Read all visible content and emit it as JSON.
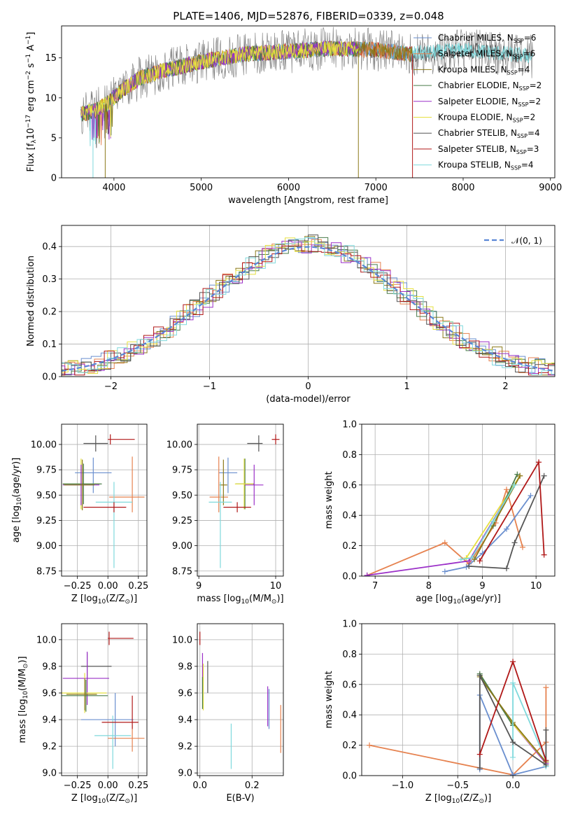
{
  "title": "PLATE=1406, MJD=52876, FIBERID=0339, z=0.048",
  "colors": {
    "Chabrier MILES": "#6a8fcf",
    "Salpeter MILES": "#e6824f",
    "Kroupa MILES": "#8c7a1a",
    "Chabrier ELODIE": "#4a7c4a",
    "Salpeter ELODIE": "#9b30c8",
    "Kroupa ELODIE": "#e6e040",
    "Chabrier STELIB": "#555555",
    "Salpeter STELIB": "#b01818",
    "Kroupa STELIB": "#7fd9dc"
  },
  "chart_data": [
    {
      "type": "line",
      "id": "spectrum",
      "title": "PLATE=1406, MJD=52876, FIBERID=0339, z=0.048",
      "xlabel": "wavelength [Angstrom, rest frame]",
      "ylabel_parts": [
        "Flux [f",
        "λ",
        "10",
        "−17",
        " erg cm",
        "−2",
        " s",
        "−1",
        " A",
        "−1",
        "]"
      ],
      "xlim": [
        3400,
        9050
      ],
      "ylim": [
        0,
        19
      ],
      "xticks": [
        4000,
        5000,
        6000,
        7000,
        8000,
        9000
      ],
      "yticks": [
        0,
        5,
        10,
        15
      ],
      "legend_position": "upper right",
      "legend": [
        {
          "model": "Chabrier MILES",
          "nssp": "6"
        },
        {
          "model": "Salpeter MILES",
          "nssp": "6"
        },
        {
          "model": "Kroupa MILES",
          "nssp": "4"
        },
        {
          "model": "Chabrier ELODIE",
          "nssp": "2"
        },
        {
          "model": "Salpeter ELODIE",
          "nssp": "2"
        },
        {
          "model": "Kroupa ELODIE",
          "nssp": "2"
        },
        {
          "model": "Chabrier STELIB",
          "nssp": "4"
        },
        {
          "model": "Salpeter STELIB",
          "nssp": "3"
        },
        {
          "model": "Kroupa STELIB",
          "nssp": "4"
        }
      ],
      "nssp_label": "N",
      "nssp_sub": "SSP",
      "continuum": {
        "x": [
          3650,
          3800,
          3950,
          4100,
          4300,
          4600,
          5000,
          5500,
          6000,
          6500,
          7000,
          7400,
          7700,
          8000,
          8400,
          8800
        ],
        "y": [
          8,
          8.5,
          9.5,
          11,
          12.5,
          13.5,
          14.5,
          15.5,
          15.8,
          16.2,
          16,
          15.5,
          15.7,
          16,
          15.6,
          15.2
        ]
      },
      "cutoffs": [
        {
          "model": "Kroupa STELIB",
          "x": 3760
        },
        {
          "model": "Kroupa MILES",
          "x": 3900
        },
        {
          "model": "Kroupa MILES",
          "x": 6800
        },
        {
          "model": "Salpeter STELIB",
          "x": 7420
        }
      ]
    },
    {
      "type": "bar",
      "id": "residuals",
      "xlabel": "(data-model)/error",
      "ylabel": "Normed distribution",
      "xlim": [
        -2.5,
        2.5
      ],
      "ylim": [
        0,
        0.465
      ],
      "xticks": [
        -2,
        -1,
        0,
        1,
        2
      ],
      "yticks": [
        0.0,
        0.1,
        0.2,
        0.3,
        0.4
      ],
      "grid": true,
      "legend_position": "upper right",
      "reference_curve": {
        "label": "𝒩(0, 1)",
        "mean": 0,
        "sigma": 1,
        "color": "#5a86d6"
      },
      "bin_width": 0.1
    },
    {
      "type": "scatter",
      "id": "age-vs-Z",
      "xlabel_parts": [
        "Z [log",
        "10",
        "(Z/Z",
        "⊙",
        ")]"
      ],
      "ylabel_parts": [
        "age  [log",
        "10",
        "(age/yr)]"
      ],
      "xlim": [
        -0.38,
        0.32
      ],
      "ylim": [
        8.7,
        10.2
      ],
      "xticks": [
        -0.25,
        0.0,
        0.25
      ],
      "xticklabels": [
        "−0.25",
        "0.00",
        "0.25"
      ],
      "yticks": [
        8.75,
        9.0,
        9.25,
        9.5,
        9.75,
        10.0
      ],
      "grid": true,
      "points": [
        {
          "model": "Salpeter STELIB",
          "x": 0.02,
          "y": 10.05,
          "xerr": [
            0.02,
            0.2
          ],
          "yerr": [
            0.05,
            0.05
          ]
        },
        {
          "model": "Chabrier STELIB",
          "x": -0.1,
          "y": 10.01,
          "xerr": [
            0.1,
            0.1
          ],
          "yerr": [
            0.08,
            0.08
          ]
        },
        {
          "model": "Chabrier MILES",
          "x": -0.12,
          "y": 9.72,
          "xerr": [
            0.15,
            0.15
          ],
          "yerr": [
            0.2,
            0.15
          ]
        },
        {
          "model": "Salpeter MILES",
          "x": 0.2,
          "y": 9.48,
          "xerr": [
            0.19,
            0.1
          ],
          "yerr": [
            0.15,
            0.4
          ]
        },
        {
          "model": "Kroupa ELODIE",
          "x": -0.22,
          "y": 9.61,
          "xerr": [
            0.15,
            0.15
          ],
          "yerr": [
            0.25,
            0.25
          ]
        },
        {
          "model": "Chabrier ELODIE",
          "x": -0.2,
          "y": 9.61,
          "xerr": [
            0.17,
            0.15
          ],
          "yerr": [
            0.2,
            0.2
          ]
        },
        {
          "model": "Salpeter ELODIE",
          "x": -0.22,
          "y": 9.6,
          "xerr": [
            0.15,
            0.15
          ],
          "yerr": [
            0.2,
            0.2
          ]
        },
        {
          "model": "Kroupa MILES",
          "x": -0.21,
          "y": 9.6,
          "xerr": [
            0.15,
            0.1
          ],
          "yerr": [
            0.25,
            0.25
          ]
        },
        {
          "model": "Kroupa STELIB",
          "x": 0.05,
          "y": 9.43,
          "xerr": [
            0.15,
            0.15
          ],
          "yerr": [
            0.65,
            0.2
          ]
        },
        {
          "model": "Salpeter STELIB",
          "x": 0.05,
          "y": 9.38,
          "xerr": [
            0.25,
            0.1
          ],
          "yerr": [
            0.05,
            0.05
          ]
        }
      ]
    },
    {
      "type": "scatter",
      "id": "age-vs-mass",
      "xlabel_parts": [
        "mass [log",
        "10",
        "(M/M",
        "⊙",
        ")]"
      ],
      "xlim": [
        8.98,
        10.1
      ],
      "ylim": [
        8.7,
        10.2
      ],
      "xticks": [
        9,
        10
      ],
      "yticks": [
        8.75,
        9.0,
        9.25,
        9.5,
        9.75,
        10.0
      ],
      "grid": true,
      "points": [
        {
          "model": "Salpeter STELIB",
          "x": 10.0,
          "y": 10.05,
          "xerr": [
            0.05,
            0.05
          ],
          "yerr": [
            0.05,
            0.05
          ]
        },
        {
          "model": "Chabrier STELIB",
          "x": 9.78,
          "y": 10.01,
          "xerr": [
            0.15,
            0.05
          ],
          "yerr": [
            0.08,
            0.08
          ]
        },
        {
          "model": "Chabrier MILES",
          "x": 9.38,
          "y": 9.72,
          "xerr": [
            0.12,
            0.12
          ],
          "yerr": [
            0.2,
            0.15
          ]
        },
        {
          "model": "Salpeter MILES",
          "x": 9.26,
          "y": 9.48,
          "xerr": [
            0.12,
            0.12
          ],
          "yerr": [
            0.15,
            0.4
          ]
        },
        {
          "model": "Chabrier ELODIE",
          "x": 9.6,
          "y": 9.61,
          "xerr": [
            0.12,
            0.12
          ],
          "yerr": [
            0.25,
            0.25
          ]
        },
        {
          "model": "Kroupa ELODIE",
          "x": 9.59,
          "y": 9.61,
          "xerr": [
            0.12,
            0.12
          ],
          "yerr": [
            0.25,
            0.25
          ]
        },
        {
          "model": "Salpeter ELODIE",
          "x": 9.72,
          "y": 9.6,
          "xerr": [
            0.12,
            0.12
          ],
          "yerr": [
            0.2,
            0.2
          ]
        },
        {
          "model": "Kroupa MILES",
          "x": 9.32,
          "y": 9.6,
          "xerr": [
            0.05,
            0.05
          ],
          "yerr": [
            0.2,
            0.25
          ]
        },
        {
          "model": "Kroupa STELIB",
          "x": 9.28,
          "y": 9.43,
          "xerr": [
            0.15,
            0.15
          ],
          "yerr": [
            0.65,
            0.2
          ]
        },
        {
          "model": "Salpeter STELIB",
          "x": 9.5,
          "y": 9.38,
          "xerr": [
            0.18,
            0.18
          ],
          "yerr": [
            0.05,
            0.05
          ]
        }
      ]
    },
    {
      "type": "line",
      "id": "weight-vs-age",
      "xlabel_parts": [
        "age  [log",
        "10",
        "(age/yr)]"
      ],
      "ylabel": "mass weight",
      "xlim": [
        6.75,
        10.35
      ],
      "ylim": [
        0,
        1
      ],
      "xticks": [
        7,
        8,
        9,
        10
      ],
      "yticks": [
        0.0,
        0.2,
        0.4,
        0.6,
        0.8,
        1.0
      ],
      "grid": true,
      "series": [
        {
          "model": "Salpeter MILES",
          "x": [
            6.85,
            8.3,
            8.75,
            9.25,
            9.45,
            9.75
          ],
          "y": [
            0.005,
            0.22,
            0.08,
            0.35,
            0.57,
            0.19
          ]
        },
        {
          "model": "Chabrier MILES",
          "x": [
            8.3,
            8.7,
            9.0,
            9.45,
            9.9
          ],
          "y": [
            0.03,
            0.06,
            0.15,
            0.31,
            0.53
          ]
        },
        {
          "model": "Salpeter ELODIE",
          "x": [
            6.85,
            8.75,
            9.7
          ],
          "y": [
            0.005,
            0.1,
            0.66
          ]
        },
        {
          "model": "Kroupa ELODIE",
          "x": [
            8.7,
            9.7
          ],
          "y": [
            0.12,
            0.66
          ]
        },
        {
          "model": "Chabrier ELODIE",
          "x": [
            9.2,
            9.65
          ],
          "y": [
            0.33,
            0.67
          ]
        },
        {
          "model": "Kroupa MILES",
          "x": [
            8.85,
            9.7
          ],
          "y": [
            0.11,
            0.66
          ]
        },
        {
          "model": "Kroupa STELIB",
          "x": [
            8.6,
            8.8,
            9.2,
            9.6
          ],
          "y": [
            0.11,
            0.12,
            0.36,
            0.6
          ]
        },
        {
          "model": "Chabrier STELIB",
          "x": [
            8.75,
            9.45,
            9.6,
            10.15
          ],
          "y": [
            0.065,
            0.05,
            0.22,
            0.66
          ]
        },
        {
          "model": "Salpeter STELIB",
          "x": [
            8.95,
            10.05,
            10.15
          ],
          "y": [
            0.1,
            0.75,
            0.14
          ]
        }
      ]
    },
    {
      "type": "scatter",
      "id": "mass-vs-Z",
      "xlabel_parts": [
        "Z [log",
        "10",
        "(Z/Z",
        "⊙",
        ")]"
      ],
      "ylabel_parts": [
        "mass [log",
        "10",
        "(M/M",
        "⊙",
        ")]"
      ],
      "xlim": [
        -0.38,
        0.32
      ],
      "ylim": [
        8.98,
        10.12
      ],
      "xticks": [
        -0.25,
        0.0,
        0.25
      ],
      "xticklabels": [
        "−0.25",
        "0.00",
        "0.25"
      ],
      "yticks": [
        9.0,
        9.2,
        9.4,
        9.6,
        9.8,
        10.0
      ],
      "grid": true,
      "points": [
        {
          "model": "Salpeter STELIB",
          "x": 0.01,
          "y": 10.01,
          "xerr": [
            0.01,
            0.2
          ],
          "yerr": [
            0.05,
            0.05
          ]
        },
        {
          "model": "Chabrier STELIB",
          "x": -0.17,
          "y": 9.8,
          "xerr": [
            0.05,
            0.2
          ],
          "yerr": [
            0.1,
            0.1
          ]
        },
        {
          "model": "Salpeter ELODIE",
          "x": -0.17,
          "y": 9.71,
          "xerr": [
            0.2,
            0.18
          ],
          "yerr": [
            0.2,
            0.2
          ]
        },
        {
          "model": "Chabrier MILES",
          "x": 0.06,
          "y": 9.4,
          "xerr": [
            0.28,
            0.15
          ],
          "yerr": [
            0.2,
            0.2
          ]
        },
        {
          "model": "Kroupa ELODIE",
          "x": -0.19,
          "y": 9.6,
          "xerr": [
            0.2,
            0.18
          ],
          "yerr": [
            0.15,
            0.15
          ]
        },
        {
          "model": "Chabrier ELODIE",
          "x": -0.18,
          "y": 9.58,
          "xerr": [
            0.2,
            0.18
          ],
          "yerr": [
            0.12,
            0.12
          ]
        },
        {
          "model": "Kroupa MILES",
          "x": -0.19,
          "y": 9.59,
          "xerr": [
            0.15,
            0.1
          ],
          "yerr": [
            0.12,
            0.12
          ]
        },
        {
          "model": "Salpeter MILES",
          "x": 0.2,
          "y": 9.26,
          "xerr": [
            0.2,
            0.1
          ],
          "yerr": [
            0.1,
            0.1
          ]
        },
        {
          "model": "Kroupa STELIB",
          "x": 0.04,
          "y": 9.28,
          "xerr": [
            0.15,
            0.15
          ],
          "yerr": [
            0.25,
            0.15
          ]
        },
        {
          "model": "Salpeter STELIB",
          "x": 0.2,
          "y": 9.38,
          "xerr": [
            0.25,
            0.05
          ],
          "yerr": [
            0.05,
            0.2
          ]
        }
      ]
    },
    {
      "type": "scatter",
      "id": "mass-vs-EBV",
      "xlabel": "E(B-V)",
      "xlim": [
        -0.01,
        0.32
      ],
      "ylim": [
        8.98,
        10.12
      ],
      "xticks": [
        0.0,
        0.2
      ],
      "yticks": [
        9.0,
        9.2,
        9.4,
        9.6,
        9.8,
        10.0
      ],
      "grid": true,
      "points": [
        {
          "model": "Salpeter STELIB",
          "x": 0.0,
          "y": 10.01,
          "yerr": [
            0.05,
            0.05
          ]
        },
        {
          "model": "Salpeter ELODIE",
          "x": 0.01,
          "y": 9.75,
          "yerr": [
            0.15,
            0.15
          ]
        },
        {
          "model": "Kroupa ELODIE",
          "x": 0.013,
          "y": 9.67,
          "yerr": [
            0.2,
            0.15
          ]
        },
        {
          "model": "Chabrier ELODIE",
          "x": 0.01,
          "y": 9.6,
          "yerr": [
            0.12,
            0.12
          ]
        },
        {
          "model": "Chabrier STELIB",
          "x": 0.03,
          "y": 9.72,
          "yerr": [
            0.12,
            0.12
          ]
        },
        {
          "model": "Kroupa STELIB",
          "x": 0.12,
          "y": 9.2,
          "yerr": [
            0.17,
            0.17
          ]
        },
        {
          "model": "Salpeter ELODIE",
          "x": 0.26,
          "y": 9.5,
          "yerr": [
            0.15,
            0.15
          ]
        },
        {
          "model": "Chabrier MILES",
          "x": 0.265,
          "y": 9.48,
          "yerr": [
            0.15,
            0.15
          ]
        },
        {
          "model": "Salpeter MILES",
          "x": 0.31,
          "y": 9.33,
          "yerr": [
            0.18,
            0.18
          ]
        }
      ]
    },
    {
      "type": "line",
      "id": "weight-vs-Z",
      "xlabel_parts": [
        "Z [log",
        "10",
        "(Z/Z",
        "⊙",
        ")]"
      ],
      "ylabel": "mass weight",
      "xlim": [
        -1.37,
        0.38
      ],
      "ylim": [
        0,
        1
      ],
      "xticks": [
        -1.0,
        -0.5,
        0.0
      ],
      "xticklabels": [
        "−1.0",
        "−0.5",
        "0.0"
      ],
      "yticks": [
        0.0,
        0.2,
        0.4,
        0.6,
        0.8,
        1.0
      ],
      "grid": true,
      "series": [
        {
          "model": "Salpeter MILES",
          "x": [
            -1.3,
            0.0,
            0.3,
            0.3
          ],
          "y": [
            0.2,
            0.005,
            0.22,
            0.58
          ]
        },
        {
          "model": "Chabrier MILES",
          "x": [
            -0.3,
            -0.3,
            0.0,
            0.3
          ],
          "y": [
            0.04,
            0.53,
            0.005,
            0.06
          ]
        },
        {
          "model": "Salpeter ELODIE",
          "x": [
            -0.3,
            0.0,
            0.3
          ],
          "y": [
            0.66,
            0.34,
            0.08
          ]
        },
        {
          "model": "Kroupa ELODIE",
          "x": [
            -0.3,
            0.0,
            0.3
          ],
          "y": [
            0.66,
            0.34,
            0.09
          ]
        },
        {
          "model": "Chabrier ELODIE",
          "x": [
            -0.3,
            0.0
          ],
          "y": [
            0.67,
            0.33
          ]
        },
        {
          "model": "Kroupa MILES",
          "x": [
            -0.3,
            0.0,
            0.3
          ],
          "y": [
            0.65,
            0.35,
            0.09
          ]
        },
        {
          "model": "Kroupa STELIB",
          "x": [
            0.0,
            0.0,
            0.3,
            0.3
          ],
          "y": [
            0.12,
            0.61,
            0.1,
            0.06
          ]
        },
        {
          "model": "Chabrier STELIB",
          "x": [
            -0.3,
            -0.3,
            0.0,
            0.3,
            0.3
          ],
          "y": [
            0.05,
            0.66,
            0.22,
            0.07,
            0.3
          ]
        },
        {
          "model": "Salpeter STELIB",
          "x": [
            -0.3,
            0.0,
            0.3
          ],
          "y": [
            0.14,
            0.75,
            0.1
          ]
        }
      ]
    }
  ]
}
